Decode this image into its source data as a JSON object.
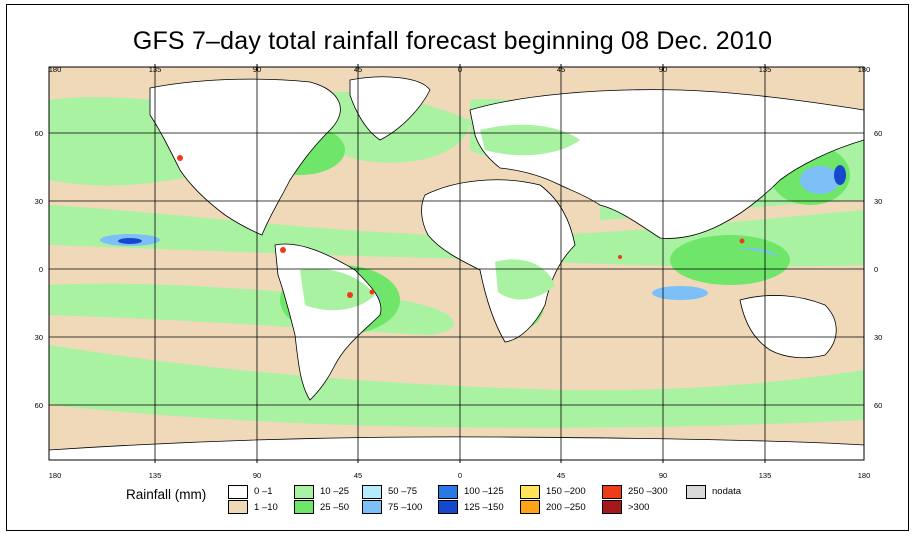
{
  "title": "GFS 7–day total rainfall forecast beginning 08 Dec. 2010",
  "top_lon_labels": [
    "180",
    "135",
    "90",
    "45",
    "0",
    "45",
    "90",
    "135",
    "180"
  ],
  "bottom_lon_labels": [
    "180",
    "135",
    "90",
    "45",
    "0",
    "45",
    "90",
    "135",
    "180"
  ],
  "left_lat_labels": [
    "60",
    "30",
    "0",
    "30",
    "60"
  ],
  "right_lat_labels": [
    "60",
    "30",
    "0",
    "30",
    "60"
  ],
  "legend": {
    "title": "Rainfall (mm)",
    "items": [
      {
        "label": "0 –1",
        "color": "#ffffff"
      },
      {
        "label": "1 –10",
        "color": "#efd9b9"
      },
      {
        "label": "10 –25",
        "color": "#a8f2a2"
      },
      {
        "label": "25 –50",
        "color": "#6fe56a"
      },
      {
        "label": "50 –75",
        "color": "#b4ecfb"
      },
      {
        "label": "75 –100",
        "color": "#7cc0f7"
      },
      {
        "label": "100 –125",
        "color": "#2a78e8"
      },
      {
        "label": "125 –150",
        "color": "#1648cf"
      },
      {
        "label": "150 –200",
        "color": "#ffe35b"
      },
      {
        "label": "200 –250",
        "color": "#ffa31a"
      },
      {
        "label": "250 –300",
        "color": "#ee3b19"
      },
      {
        "label": ">300",
        "color": "#a5191b"
      },
      {
        "label": "nodata",
        "color": "#d9d9d9"
      }
    ]
  },
  "colors": {
    "ocean_dry": "#efd9b9",
    "light_rain": "#a8f2a2",
    "moderate_rain": "#6fe56a",
    "heavy_blue": "#7cc0f7",
    "deep_blue": "#1648cf",
    "extreme_red": "#ee3b19",
    "land_dry": "#ffffff",
    "grid": "#000000"
  }
}
